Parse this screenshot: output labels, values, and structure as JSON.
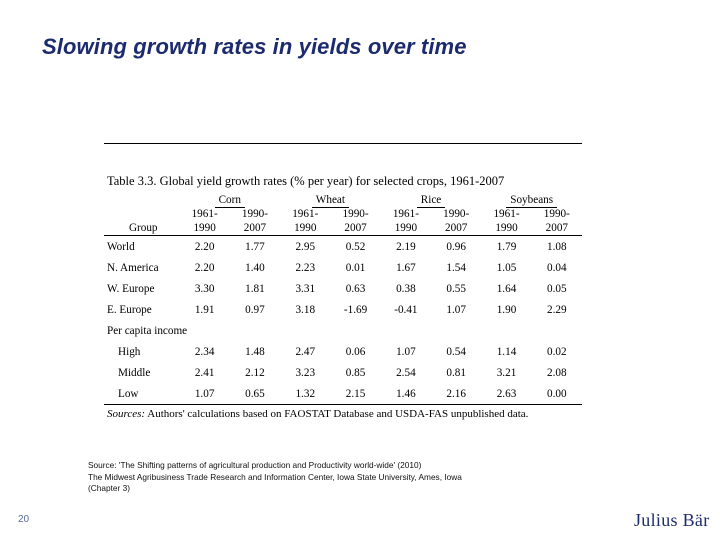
{
  "slide": {
    "title": "Slowing growth rates in yields over time",
    "page_number": "20",
    "logo_text": "Julius Bär",
    "source_note": [
      "Source: 'The Shifting patterns of agricultural production and Productivity world-wide' (2010)",
      "The Midwest Agribusiness Trade Research and Information Center,  Iowa State University, Ames, Iowa",
      "(Chapter 3)"
    ]
  },
  "table": {
    "caption_label": "Table 3.3.",
    "caption_text": "Global yield growth rates (% per year) for selected crops, 1961-2007",
    "group_header": "Group",
    "crops": [
      "Corn",
      "Wheat",
      "Rice",
      "Soybeans"
    ],
    "period_line1": [
      "1961-",
      "1990-",
      "1961-",
      "1990-",
      "1961-",
      "1990-",
      "1961-",
      "1990-"
    ],
    "period_line2": [
      "1990",
      "2007",
      "1990",
      "2007",
      "1990",
      "2007",
      "1990",
      "2007"
    ],
    "rows": [
      {
        "label": "World",
        "values": [
          "2.20",
          "1.77",
          "2.95",
          "0.52",
          "2.19",
          "0.96",
          "1.79",
          "1.08"
        ]
      },
      {
        "label": "N. America",
        "values": [
          "2.20",
          "1.40",
          "2.23",
          "0.01",
          "1.67",
          "1.54",
          "1.05",
          "0.04"
        ]
      },
      {
        "label": "W. Europe",
        "values": [
          "3.30",
          "1.81",
          "3.31",
          "0.63",
          "0.38",
          "0.55",
          "1.64",
          "0.05"
        ]
      },
      {
        "label": "E. Europe",
        "values": [
          "1.91",
          "0.97",
          "3.18",
          "-1.69",
          "-0.41",
          "1.07",
          "1.90",
          "2.29"
        ]
      }
    ],
    "section_label": "Per capita income",
    "income_rows": [
      {
        "label": "High",
        "values": [
          "2.34",
          "1.48",
          "2.47",
          "0.06",
          "1.07",
          "0.54",
          "1.14",
          "0.02"
        ]
      },
      {
        "label": "Middle",
        "values": [
          "2.41",
          "2.12",
          "3.23",
          "0.85",
          "2.54",
          "0.81",
          "3.21",
          "2.08"
        ]
      },
      {
        "label": "Low",
        "values": [
          "1.07",
          "0.65",
          "1.32",
          "2.15",
          "1.46",
          "2.16",
          "2.63",
          "0.00"
        ]
      }
    ],
    "sources_label": "Sources:",
    "sources_text": "Authors' calculations based on FAOSTAT Database and USDA-FAS unpublished data."
  }
}
